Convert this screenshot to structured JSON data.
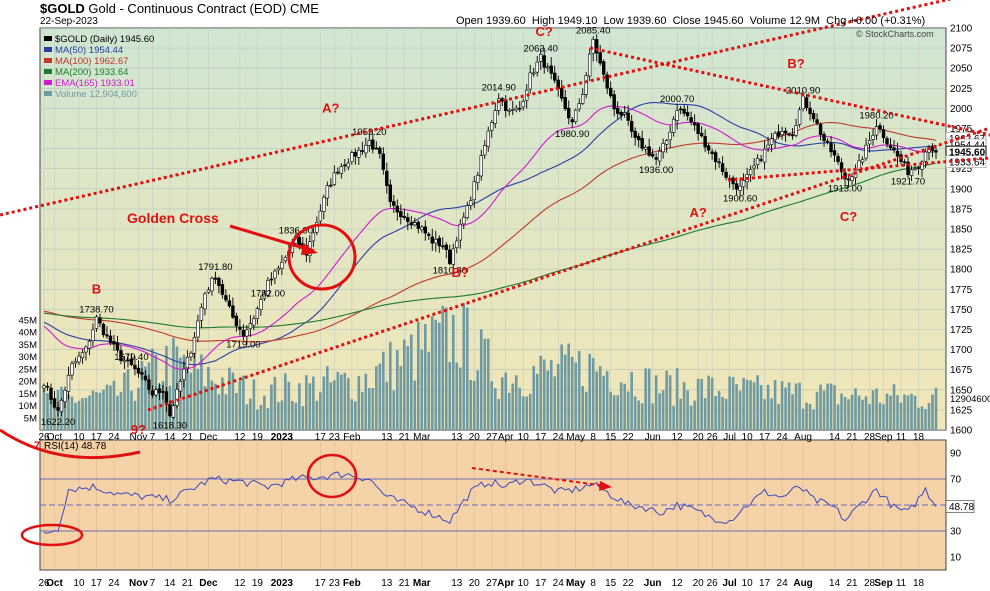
{
  "header": {
    "symbol": "$GOLD",
    "name": "Gold - Continuous Contract (EOD)",
    "exchange": "CME",
    "date": "22-Sep-2023",
    "open_label": "Open",
    "open": "1939.60",
    "high_label": "High",
    "high": "1949.10",
    "low_label": "Low",
    "low": "1939.60",
    "close_label": "Close",
    "close": "1945.60",
    "volume_label": "Volume",
    "volume": "12.9M",
    "chg_label": "Chg",
    "chg": "+6.00 (+0.31%)",
    "credit": "© StockCharts.com"
  },
  "colors": {
    "price_bg_top": "#cfe6d2",
    "price_bg_bottom": "#f3e6b6",
    "rsi_bg": "#f5d2a8",
    "candle": "#000000",
    "ma50": "#2b3fa8",
    "ma100": "#c0392b",
    "ma200": "#1e7a2e",
    "ema165": "#d21ad2",
    "volume": "#6f9aa2",
    "rsi_line": "#3b4bbf",
    "annotation_red": "#e01010",
    "current_price_box": "#ffffff"
  },
  "chart_data": {
    "type": "line",
    "title": "$GOLD Gold - Continuous Contract (EOD) CME",
    "ylim": [
      1600,
      2100
    ],
    "y_ticks": [
      1600,
      1625,
      1650,
      1675,
      1700,
      1725,
      1750,
      1775,
      1800,
      1825,
      1850,
      1875,
      1900,
      1925,
      1950,
      1975,
      2000,
      2025,
      2050,
      2075,
      2100
    ],
    "x_ticks": [
      {
        "label": "26",
        "i": 0
      },
      {
        "label": "Oct",
        "i": 3
      },
      {
        "label": "10",
        "i": 10
      },
      {
        "label": "17",
        "i": 15
      },
      {
        "label": "24",
        "i": 20
      },
      {
        "label": "Nov",
        "i": 27
      },
      {
        "label": "7",
        "i": 31
      },
      {
        "label": "14",
        "i": 36
      },
      {
        "label": "21",
        "i": 41
      },
      {
        "label": "Dec",
        "i": 47
      },
      {
        "label": "12",
        "i": 56
      },
      {
        "label": "19",
        "i": 61
      },
      {
        "label": "2023",
        "i": 68
      },
      {
        "label": "17",
        "i": 79
      },
      {
        "label": "23",
        "i": 83
      },
      {
        "label": "Feb",
        "i": 88
      },
      {
        "label": "13",
        "i": 98
      },
      {
        "label": "21",
        "i": 103
      },
      {
        "label": "Mar",
        "i": 108
      },
      {
        "label": "13",
        "i": 118
      },
      {
        "label": "20",
        "i": 123
      },
      {
        "label": "27",
        "i": 128
      },
      {
        "label": "Apr",
        "i": 132
      },
      {
        "label": "10",
        "i": 137
      },
      {
        "label": "17",
        "i": 142
      },
      {
        "label": "24",
        "i": 147
      },
      {
        "label": "May",
        "i": 152
      },
      {
        "label": "8",
        "i": 157
      },
      {
        "label": "15",
        "i": 162
      },
      {
        "label": "22",
        "i": 167
      },
      {
        "label": "Jun",
        "i": 174
      },
      {
        "label": "12",
        "i": 181
      },
      {
        "label": "20",
        "i": 187
      },
      {
        "label": "26",
        "i": 191
      },
      {
        "label": "Jul",
        "i": 196
      },
      {
        "label": "10",
        "i": 201
      },
      {
        "label": "17",
        "i": 206
      },
      {
        "label": "24",
        "i": 211
      },
      {
        "label": "Aug",
        "i": 217
      },
      {
        "label": "14",
        "i": 226
      },
      {
        "label": "21",
        "i": 231
      },
      {
        "label": "28",
        "i": 236
      },
      {
        "label": "Sep",
        "i": 240
      },
      {
        "label": "11",
        "i": 245
      },
      {
        "label": "18",
        "i": 250
      }
    ],
    "price_keypoints": [
      [
        0,
        1660
      ],
      [
        2,
        1640
      ],
      [
        4,
        1622.2
      ],
      [
        8,
        1680
      ],
      [
        12,
        1700
      ],
      [
        15,
        1738.7
      ],
      [
        18,
        1715
      ],
      [
        22,
        1690
      ],
      [
        25,
        1679.4
      ],
      [
        28,
        1665
      ],
      [
        31,
        1645
      ],
      [
        34,
        1650
      ],
      [
        36,
        1618.3
      ],
      [
        39,
        1660
      ],
      [
        42,
        1700
      ],
      [
        46,
        1770
      ],
      [
        49,
        1791.8
      ],
      [
        51,
        1770
      ],
      [
        54,
        1740
      ],
      [
        57,
        1719
      ],
      [
        60,
        1740
      ],
      [
        64,
        1782
      ],
      [
        67,
        1800
      ],
      [
        70,
        1822
      ],
      [
        72,
        1836.9
      ],
      [
        75,
        1820
      ],
      [
        78,
        1860
      ],
      [
        81,
        1900
      ],
      [
        84,
        1925
      ],
      [
        88,
        1940
      ],
      [
        91,
        1950
      ],
      [
        93,
        1959.2
      ],
      [
        96,
        1940
      ],
      [
        99,
        1880
      ],
      [
        102,
        1870
      ],
      [
        105,
        1860
      ],
      [
        108,
        1850
      ],
      [
        111,
        1835
      ],
      [
        114,
        1830
      ],
      [
        116,
        1810.8
      ],
      [
        118,
        1840
      ],
      [
        121,
        1875
      ],
      [
        124,
        1920
      ],
      [
        127,
        1970
      ],
      [
        130,
        2014.9
      ],
      [
        133,
        1995
      ],
      [
        136,
        2000
      ],
      [
        139,
        2040
      ],
      [
        142,
        2063.4
      ],
      [
        145,
        2040
      ],
      [
        148,
        2010
      ],
      [
        151,
        1980.9
      ],
      [
        154,
        2020
      ],
      [
        157,
        2085.4
      ],
      [
        160,
        2040
      ],
      [
        163,
        2000
      ],
      [
        166,
        1990
      ],
      [
        169,
        1960
      ],
      [
        172,
        1950
      ],
      [
        175,
        1936
      ],
      [
        178,
        1960
      ],
      [
        181,
        2000.7
      ],
      [
        184,
        1990
      ],
      [
        187,
        1970
      ],
      [
        190,
        1950
      ],
      [
        193,
        1930
      ],
      [
        196,
        1910
      ],
      [
        199,
        1900.6
      ],
      [
        202,
        1920
      ],
      [
        205,
        1940
      ],
      [
        208,
        1960
      ],
      [
        211,
        1975
      ],
      [
        214,
        1970
      ],
      [
        217,
        2010.9
      ],
      [
        220,
        1990
      ],
      [
        223,
        1960
      ],
      [
        226,
        1940
      ],
      [
        229,
        1913
      ],
      [
        232,
        1920
      ],
      [
        235,
        1950
      ],
      [
        238,
        1980.2
      ],
      [
        241,
        1960
      ],
      [
        244,
        1940
      ],
      [
        247,
        1921.7
      ],
      [
        250,
        1930
      ],
      [
        253,
        1955
      ],
      [
        255,
        1945.6
      ]
    ],
    "volume_keypoints_m": [
      [
        0,
        12
      ],
      [
        20,
        14
      ],
      [
        36,
        28
      ],
      [
        60,
        15
      ],
      [
        90,
        20
      ],
      [
        118,
        40
      ],
      [
        130,
        22
      ],
      [
        157,
        26
      ],
      [
        175,
        18
      ],
      [
        200,
        16
      ],
      [
        230,
        14
      ],
      [
        255,
        12.9
      ]
    ],
    "rsi_keypoints": [
      [
        0,
        28
      ],
      [
        4,
        32
      ],
      [
        7,
        62
      ],
      [
        14,
        64
      ],
      [
        22,
        58
      ],
      [
        30,
        56
      ],
      [
        36,
        54
      ],
      [
        42,
        62
      ],
      [
        48,
        70
      ],
      [
        56,
        68
      ],
      [
        64,
        64
      ],
      [
        72,
        70
      ],
      [
        80,
        72
      ],
      [
        86,
        74
      ],
      [
        93,
        70
      ],
      [
        98,
        56
      ],
      [
        104,
        50
      ],
      [
        110,
        44
      ],
      [
        116,
        38
      ],
      [
        122,
        60
      ],
      [
        127,
        68
      ],
      [
        132,
        64
      ],
      [
        137,
        70
      ],
      [
        142,
        66
      ],
      [
        147,
        60
      ],
      [
        152,
        62
      ],
      [
        157,
        66
      ],
      [
        162,
        58
      ],
      [
        167,
        50
      ],
      [
        172,
        48
      ],
      [
        176,
        44
      ],
      [
        181,
        50
      ],
      [
        186,
        46
      ],
      [
        191,
        40
      ],
      [
        196,
        38
      ],
      [
        201,
        50
      ],
      [
        206,
        60
      ],
      [
        211,
        56
      ],
      [
        216,
        64
      ],
      [
        220,
        54
      ],
      [
        226,
        48
      ],
      [
        229,
        38
      ],
      [
        234,
        52
      ],
      [
        238,
        62
      ],
      [
        243,
        48
      ],
      [
        247,
        44
      ],
      [
        252,
        62
      ],
      [
        255,
        48.78
      ]
    ],
    "series": [
      {
        "name": "$GOLD (Daily) 1945.60",
        "last": 1945.6
      },
      {
        "name": "MA(50) 1954.44",
        "last": 1954.44
      },
      {
        "name": "MA(100) 1962.67",
        "last": 1962.67
      },
      {
        "name": "MA(200) 1933.64",
        "last": 1933.64
      },
      {
        "name": "EMA(165) 1933.01",
        "last": 1933.01
      },
      {
        "name": "Volume 12,904,600",
        "last": 12.9
      }
    ],
    "price_labels": [
      {
        "text": "1622.20",
        "i": 4,
        "v": 1622.2,
        "pos": "below"
      },
      {
        "text": "1738.70",
        "i": 15,
        "v": 1738.7,
        "pos": "above"
      },
      {
        "text": "1679.40",
        "i": 25,
        "v": 1679.4,
        "pos": "above"
      },
      {
        "text": "1618.30",
        "i": 36,
        "v": 1618.3,
        "pos": "below"
      },
      {
        "text": "1791.80",
        "i": 49,
        "v": 1791.8,
        "pos": "above"
      },
      {
        "text": "1719.00",
        "i": 57,
        "v": 1719.0,
        "pos": "below"
      },
      {
        "text": "1782.00",
        "i": 64,
        "v": 1782.0,
        "pos": "below"
      },
      {
        "text": "1836.90",
        "i": 72,
        "v": 1836.9,
        "pos": "above"
      },
      {
        "text": "1959.20",
        "i": 93,
        "v": 1959.2,
        "pos": "above"
      },
      {
        "text": "1810.80",
        "i": 116,
        "v": 1810.8,
        "pos": "below"
      },
      {
        "text": "2014.90",
        "i": 130,
        "v": 2014.9,
        "pos": "above"
      },
      {
        "text": "2063.40",
        "i": 142,
        "v": 2063.4,
        "pos": "above"
      },
      {
        "text": "1980.90",
        "i": 151,
        "v": 1980.9,
        "pos": "below"
      },
      {
        "text": "2085.40",
        "i": 157,
        "v": 2085.4,
        "pos": "above"
      },
      {
        "text": "1936.00",
        "i": 175,
        "v": 1936.0,
        "pos": "below"
      },
      {
        "text": "2000.70",
        "i": 181,
        "v": 2000.7,
        "pos": "above"
      },
      {
        "text": "1900.60",
        "i": 199,
        "v": 1900.6,
        "pos": "below"
      },
      {
        "text": "2010.90",
        "i": 217,
        "v": 2010.9,
        "pos": "above"
      },
      {
        "text": "1913.00",
        "i": 229,
        "v": 1913.0,
        "pos": "below"
      },
      {
        "text": "1980.20",
        "i": 238,
        "v": 1980.2,
        "pos": "above"
      },
      {
        "text": "1921.70",
        "i": 247,
        "v": 1921.7,
        "pos": "below"
      }
    ],
    "wave_labels": [
      {
        "text": "B",
        "i": 15,
        "v": 1770
      },
      {
        "text": "9?",
        "i": 27,
        "v": 1595
      },
      {
        "text": "A?",
        "i": 82,
        "v": 1995
      },
      {
        "text": "B?",
        "i": 119,
        "v": 1790
      },
      {
        "text": "C?",
        "i": 143,
        "v": 2090
      },
      {
        "text": "A?",
        "i": 187,
        "v": 1865
      },
      {
        "text": "B?",
        "i": 215,
        "v": 2050
      },
      {
        "text": "C?",
        "i": 230,
        "v": 1860
      }
    ],
    "annotation": {
      "text": "Golden Cross"
    },
    "right_axis_boxes": [
      {
        "text": "1962.67",
        "v": 1962.67
      },
      {
        "text": "1954.44",
        "v": 1954.44
      },
      {
        "text": "1945.60",
        "v": 1945.6
      },
      {
        "text": "1933.64",
        "v": 1933.64
      }
    ],
    "volume_ticks": [
      {
        "label": "5M",
        "v": 5
      },
      {
        "label": "10M",
        "v": 10
      },
      {
        "label": "15M",
        "v": 15
      },
      {
        "label": "20M",
        "v": 20
      },
      {
        "label": "25M",
        "v": 25
      },
      {
        "label": "30M",
        "v": 30
      },
      {
        "label": "35M",
        "v": 35
      },
      {
        "label": "40M",
        "v": 40
      },
      {
        "label": "45M",
        "v": 45
      }
    ],
    "volume_last_label": "12904600",
    "rsi": {
      "name": "RSI(14) 48.78",
      "wave_label": "7",
      "last": 48.78,
      "last_label": "48.78",
      "ylim": [
        0,
        100
      ],
      "levels": [
        70,
        30
      ],
      "ticks": [
        {
          "label": "90",
          "v": 90
        },
        {
          "label": "70",
          "v": 70
        },
        {
          "label": "50",
          "v": 50
        },
        {
          "label": "30",
          "v": 30
        },
        {
          "label": "10",
          "v": 10
        }
      ]
    },
    "grid": true,
    "legend": "top-left"
  }
}
